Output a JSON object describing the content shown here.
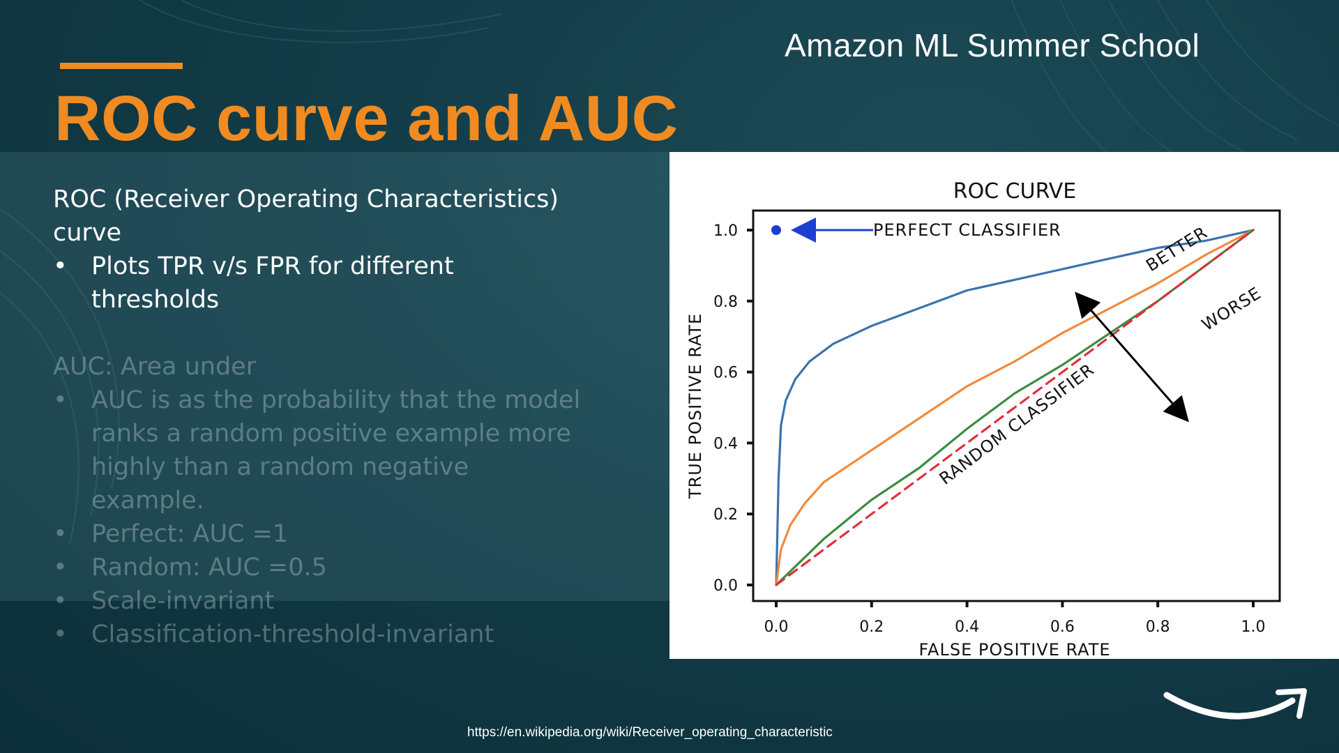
{
  "slide": {
    "brand": "Amazon ML Summer School",
    "title": "ROC curve and AUC",
    "roc_heading_line1": "ROC (Receiver Operating Characteristics)",
    "roc_heading_line2": "curve",
    "roc_bullets": [
      "Plots TPR v/s FPR for different thresholds"
    ],
    "auc_heading": "AUC: Area under",
    "auc_bullets": [
      "AUC is as the probability that the model ranks a random positive example more highly than a random negative example.",
      "Perfect: AUC =1",
      "Random: AUC =0.5",
      "Scale-invariant",
      "Classification-threshold-invariant"
    ],
    "source_url": "https://en.wikipedia.org/wiki/Receiver_operating_characteristic",
    "colors": {
      "background": "#123c47",
      "accent": "#f08b22",
      "text": "#ffffff"
    },
    "icons": {
      "logo": "amazon-smile-icon"
    }
  },
  "chart_data": {
    "type": "line",
    "title": "ROC CURVE",
    "xlabel": "FALSE POSITIVE RATE",
    "ylabel": "TRUE POSITIVE RATE",
    "xlim": [
      0,
      1
    ],
    "ylim": [
      0,
      1
    ],
    "xticks": [
      "0.0",
      "0.2",
      "0.4",
      "0.6",
      "0.8",
      "1.0"
    ],
    "yticks": [
      "0.0",
      "0.2",
      "0.4",
      "0.6",
      "0.8",
      "1.0"
    ],
    "grid": false,
    "series": [
      {
        "color": "#3b73ad",
        "x": [
          0.0,
          0.005,
          0.01,
          0.02,
          0.04,
          0.07,
          0.12,
          0.2,
          0.3,
          0.4,
          0.5,
          0.6,
          0.7,
          0.8,
          0.9,
          1.0
        ],
        "y": [
          0.0,
          0.3,
          0.45,
          0.52,
          0.58,
          0.63,
          0.68,
          0.73,
          0.78,
          0.83,
          0.86,
          0.89,
          0.92,
          0.95,
          0.97,
          1.0
        ]
      },
      {
        "color": "#f08a3c",
        "x": [
          0.0,
          0.01,
          0.03,
          0.06,
          0.1,
          0.2,
          0.3,
          0.4,
          0.5,
          0.6,
          0.7,
          0.8,
          0.9,
          1.0
        ],
        "y": [
          0.0,
          0.1,
          0.17,
          0.23,
          0.29,
          0.38,
          0.47,
          0.56,
          0.63,
          0.71,
          0.78,
          0.85,
          0.93,
          1.0
        ]
      },
      {
        "color": "#3d8c40",
        "x": [
          0.0,
          0.1,
          0.2,
          0.3,
          0.4,
          0.5,
          0.6,
          0.7,
          0.8,
          0.9,
          1.0
        ],
        "y": [
          0.0,
          0.13,
          0.24,
          0.33,
          0.44,
          0.54,
          0.62,
          0.71,
          0.8,
          0.9,
          1.0
        ]
      },
      {
        "color": "#e0303a",
        "dashed": true,
        "x": [
          0.0,
          1.0
        ],
        "y": [
          0.0,
          1.0
        ]
      }
    ],
    "perfect_point": {
      "x": 0.0,
      "y": 1.0,
      "color": "#1b3fd1"
    },
    "annotations": {
      "perfect": "PERFECT CLASSIFIER",
      "better": "BETTER",
      "worse": "WORSE",
      "random": "RANDOM CLASSIFIER"
    },
    "annotation_colors": {
      "perfect": "#1b3fd1",
      "random": "#e0303a"
    }
  }
}
